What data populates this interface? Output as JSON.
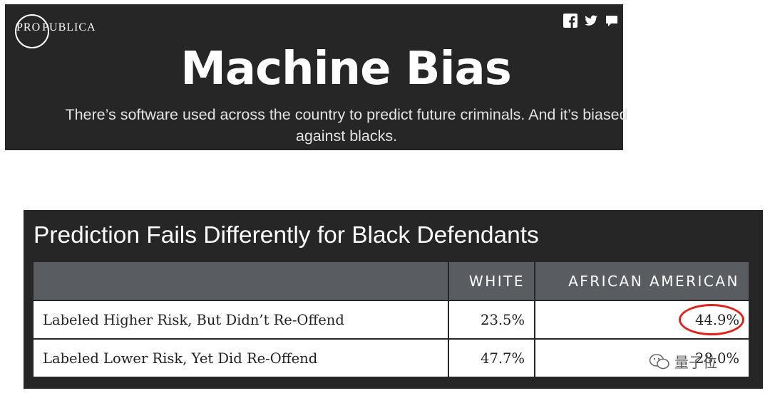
{
  "header": {
    "logo_text_left": "PRO",
    "logo_text_right": "PUBLICA",
    "share_icons": [
      "facebook-icon",
      "twitter-icon",
      "comment-icon"
    ],
    "title": "Machine Bias",
    "subtitle": "There’s software used across the country to predict future criminals. And it’s biased against blacks."
  },
  "panel": {
    "title": "Prediction Fails Differently for Black Defendants",
    "columns": [
      "",
      "WHITE",
      "AFRICAN AMERICAN"
    ],
    "rows": [
      {
        "label": "Labeled Higher Risk, But Didn’t Re-Offend",
        "white": "23.5%",
        "african_american": "44.9%",
        "highlighted": true
      },
      {
        "label": "Labeled Lower Risk, Yet Did Re-Offend",
        "white": "47.7%",
        "african_american": "28.0%",
        "highlighted": false
      }
    ],
    "highlight_color": "#e0231c"
  },
  "watermark": {
    "text": "量子位"
  },
  "colors": {
    "header_bg": "#262626",
    "table_header_bg": "#595c60",
    "accent_red": "#e0231c"
  }
}
